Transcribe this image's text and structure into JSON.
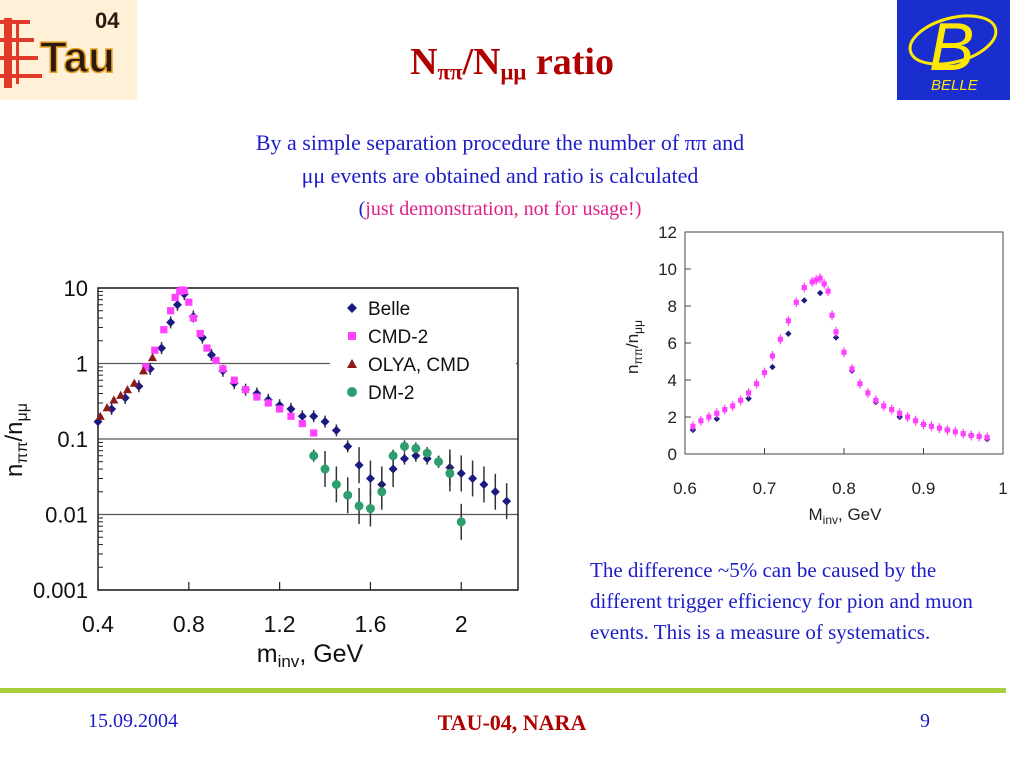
{
  "slide": {
    "title_main": "N",
    "title_sub1": "ππ",
    "title_sep": "/N",
    "title_sub2": "μμ",
    "title_tail": " ratio",
    "intro_line1": "By a simple separation procedure the number of ππ and",
    "intro_line2": "μμ events are obtained and ratio is calculated",
    "intro_line3_open": "(",
    "intro_line3_pink": "just demonstration, not for usage!)",
    "note": "The difference ~5% can be caused by the different trigger efficiency for pion and muon events. This is a measure of systematics.",
    "footer_date": "15.09.2004",
    "footer_conf": "TAU-04,  NARA",
    "footer_page": "9"
  },
  "logos": {
    "tau_year": "04",
    "tau_text": "Tau",
    "belle_letter": "B",
    "belle_text": "BELLE"
  },
  "colors": {
    "title": "#b00000",
    "text_blue": "#1c1cc8",
    "pink": "#e0208c",
    "footer_line": "#a9cf3c",
    "belle_series": "#1a1a80",
    "cmd2_series": "#ff40ff",
    "olya_series": "#8b1a1a",
    "dm2_series": "#2e9e6e"
  },
  "chart_data": [
    {
      "type": "scatter",
      "yscale": "log",
      "xlabel_main": "m",
      "xlabel_sub": "inv",
      "xlabel_unit": ",   GeV",
      "ylabel_main": "n",
      "ylabel_sub1": "ππ",
      "ylabel_sep": "/n",
      "ylabel_sub2": "μμ",
      "xlim": [
        0.4,
        2.25
      ],
      "ylim": [
        0.001,
        10
      ],
      "xticks": [
        "0.4",
        "0.8",
        "1.2",
        "1.6",
        "2"
      ],
      "xtick_values": [
        0.4,
        0.8,
        1.2,
        1.6,
        2.0
      ],
      "yticks": [
        "0.001",
        "0.01",
        "0.1",
        "1",
        "10"
      ],
      "ytick_values": [
        0.001,
        0.01,
        0.1,
        1,
        10
      ],
      "grid": "horizontal",
      "legend_position": "top-right",
      "series": [
        {
          "name": "Belle",
          "marker": "diamond",
          "x": [
            0.4,
            0.46,
            0.52,
            0.58,
            0.63,
            0.68,
            0.72,
            0.75,
            0.78,
            0.82,
            0.86,
            0.9,
            0.95,
            1.0,
            1.05,
            1.1,
            1.15,
            1.2,
            1.25,
            1.3,
            1.35,
            1.4,
            1.45,
            1.5,
            1.55,
            1.6,
            1.65,
            1.7,
            1.75,
            1.8,
            1.85,
            1.9,
            1.95,
            2.0,
            2.05,
            2.1,
            2.15,
            2.2
          ],
          "y": [
            0.17,
            0.25,
            0.35,
            0.5,
            0.85,
            1.6,
            3.5,
            6,
            8.3,
            4.2,
            2.2,
            1.3,
            0.8,
            0.55,
            0.45,
            0.4,
            0.33,
            0.28,
            0.25,
            0.2,
            0.2,
            0.17,
            0.13,
            0.08,
            0.045,
            0.03,
            0.025,
            0.04,
            0.055,
            0.06,
            0.055,
            0.05,
            0.042,
            0.035,
            0.03,
            0.025,
            0.02,
            0.015
          ]
        },
        {
          "name": "CMD-2",
          "marker": "square",
          "x": [
            0.61,
            0.65,
            0.69,
            0.72,
            0.74,
            0.76,
            0.77,
            0.78,
            0.8,
            0.82,
            0.85,
            0.88,
            0.92,
            0.95,
            1.0,
            1.05,
            1.1,
            1.15,
            1.2,
            1.25,
            1.3,
            1.35
          ],
          "y": [
            0.9,
            1.5,
            2.8,
            5.0,
            7.5,
            9.0,
            9.4,
            9.2,
            6.5,
            4.0,
            2.5,
            1.6,
            1.1,
            0.85,
            0.6,
            0.45,
            0.36,
            0.3,
            0.25,
            0.2,
            0.16,
            0.12
          ]
        },
        {
          "name": "OLYA, CMD",
          "marker": "triangle",
          "x": [
            0.41,
            0.44,
            0.47,
            0.5,
            0.53,
            0.56,
            0.6,
            0.64
          ],
          "y": [
            0.2,
            0.26,
            0.33,
            0.38,
            0.45,
            0.55,
            0.8,
            1.2
          ]
        },
        {
          "name": "DM-2",
          "marker": "circle",
          "x": [
            1.35,
            1.4,
            1.45,
            1.5,
            1.55,
            1.6,
            1.65,
            1.7,
            1.75,
            1.8,
            1.85,
            1.9,
            1.95,
            2.0
          ],
          "y": [
            0.06,
            0.04,
            0.025,
            0.018,
            0.013,
            0.012,
            0.02,
            0.06,
            0.08,
            0.075,
            0.065,
            0.05,
            0.035,
            0.008
          ]
        }
      ]
    },
    {
      "type": "scatter",
      "xlabel_main": "M",
      "xlabel_sub": "inv",
      "xlabel_unit": ",  GeV",
      "ylabel_main": "n",
      "ylabel_sub1": "ππ",
      "ylabel_sep": "/n",
      "ylabel_sub2": "μμ",
      "xlim": [
        0.6,
        1.0
      ],
      "ylim": [
        0,
        12
      ],
      "xticks": [
        "0.6",
        "0.7",
        "0.8",
        "0.9",
        "1"
      ],
      "xtick_values": [
        0.6,
        0.7,
        0.8,
        0.9,
        1.0
      ],
      "yticks": [
        "0",
        "2",
        "4",
        "6",
        "8",
        "10",
        "12"
      ],
      "ytick_values": [
        0,
        2,
        4,
        6,
        8,
        10,
        12
      ],
      "grid": "none",
      "series": [
        {
          "name": "Belle",
          "marker": "diamond",
          "x": [
            0.61,
            0.64,
            0.68,
            0.71,
            0.73,
            0.75,
            0.77,
            0.79,
            0.81,
            0.84,
            0.87,
            0.9,
            0.93,
            0.96,
            0.98
          ],
          "y": [
            1.3,
            1.9,
            3.0,
            4.7,
            6.5,
            8.3,
            8.7,
            6.3,
            4.5,
            2.8,
            2.0,
            1.6,
            1.3,
            1.0,
            0.8
          ]
        },
        {
          "name": "CMD-2",
          "marker": "square",
          "x": [
            0.61,
            0.62,
            0.63,
            0.64,
            0.65,
            0.66,
            0.67,
            0.68,
            0.69,
            0.7,
            0.71,
            0.72,
            0.73,
            0.74,
            0.75,
            0.76,
            0.765,
            0.77,
            0.775,
            0.78,
            0.785,
            0.79,
            0.8,
            0.81,
            0.82,
            0.83,
            0.84,
            0.85,
            0.86,
            0.87,
            0.88,
            0.89,
            0.9,
            0.91,
            0.92,
            0.93,
            0.94,
            0.95,
            0.96,
            0.97,
            0.98
          ],
          "y": [
            1.5,
            1.8,
            2.0,
            2.2,
            2.4,
            2.6,
            2.9,
            3.3,
            3.8,
            4.4,
            5.3,
            6.2,
            7.2,
            8.2,
            9.0,
            9.3,
            9.4,
            9.5,
            9.2,
            8.8,
            7.5,
            6.6,
            5.5,
            4.6,
            3.8,
            3.3,
            2.9,
            2.6,
            2.4,
            2.2,
            2.0,
            1.8,
            1.6,
            1.5,
            1.4,
            1.3,
            1.2,
            1.1,
            1.0,
            0.95,
            0.9
          ]
        }
      ]
    }
  ]
}
